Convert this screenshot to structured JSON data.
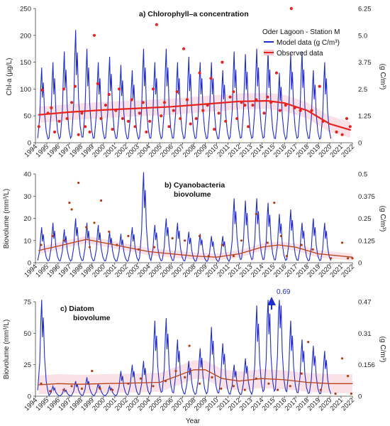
{
  "chart_data": [
    {
      "type": "line",
      "title": "a)  Chlorophyll–a concentration",
      "ylabel": "Chl-a (µg/L)",
      "y2label": "(g C/m³)",
      "xlabel": "",
      "ylim": [
        0,
        250
      ],
      "yticks": [
        "0",
        "50",
        "100",
        "150",
        "200",
        "250"
      ],
      "y2ticks": [
        "0",
        "1.25",
        "2.5",
        "3.75",
        "5.0",
        "6.25"
      ],
      "legend": {
        "title": "Oder Lagoon - Station M",
        "model_label": "Model data (g C/m³)",
        "observed_label": "Observed data",
        "placement": "top-right"
      },
      "model_peaks": [
        140,
        150,
        170,
        210,
        175,
        150,
        160,
        145,
        135,
        175,
        150,
        175,
        150,
        160,
        150,
        150,
        135,
        170,
        165,
        175,
        170,
        130,
        165,
        170,
        135,
        150
      ],
      "trend": [
        [
          1994.3,
          52
        ],
        [
          1997,
          57
        ],
        [
          2000,
          61
        ],
        [
          2003,
          64
        ],
        [
          2006,
          67
        ],
        [
          2009,
          72
        ],
        [
          2012,
          77
        ],
        [
          2014.5,
          78
        ],
        [
          2016,
          74
        ],
        [
          2018,
          60
        ],
        [
          2020,
          35
        ],
        [
          2021.8,
          24
        ]
      ],
      "observed": [
        [
          1994.3,
          30
        ],
        [
          1994.6,
          98
        ],
        [
          1995.1,
          55
        ],
        [
          1995.4,
          65
        ],
        [
          1995.7,
          20
        ],
        [
          1996.1,
          40
        ],
        [
          1996.5,
          100
        ],
        [
          1996.8,
          45
        ],
        [
          1997.2,
          75
        ],
        [
          1997.5,
          105
        ],
        [
          1997.8,
          15
        ],
        [
          1998.1,
          55
        ],
        [
          1998.4,
          30
        ],
        [
          1998.8,
          20
        ],
        [
          1999.2,
          200
        ],
        [
          1999.5,
          110
        ],
        [
          1999.8,
          45
        ],
        [
          2000.2,
          70
        ],
        [
          2000.5,
          90
        ],
        [
          2000.8,
          25
        ],
        [
          2001.1,
          60
        ],
        [
          2001.4,
          100
        ],
        [
          2001.7,
          45
        ],
        [
          2002.2,
          40
        ],
        [
          2002.5,
          80
        ],
        [
          2002.8,
          30
        ],
        [
          2003.2,
          55
        ],
        [
          2003.5,
          75
        ],
        [
          2003.8,
          20
        ],
        [
          2004.1,
          40
        ],
        [
          2004.4,
          100
        ],
        [
          2004.7,
          220
        ],
        [
          2005.1,
          50
        ],
        [
          2005.4,
          75
        ],
        [
          2005.8,
          30
        ],
        [
          2006.2,
          60
        ],
        [
          2006.5,
          95
        ],
        [
          2006.8,
          45
        ],
        [
          2007.1,
          175
        ],
        [
          2007.4,
          80
        ],
        [
          2007.7,
          35
        ],
        [
          2008.2,
          45
        ],
        [
          2008.5,
          130
        ],
        [
          2008.8,
          60
        ],
        [
          2009.2,
          70
        ],
        [
          2009.5,
          120
        ],
        [
          2009.8,
          25
        ],
        [
          2010.2,
          55
        ],
        [
          2010.5,
          150
        ],
        [
          2010.8,
          40
        ],
        [
          2011.2,
          85
        ],
        [
          2011.5,
          95
        ],
        [
          2011.8,
          45
        ],
        [
          2012.2,
          75
        ],
        [
          2012.5,
          70
        ],
        [
          2012.8,
          30
        ],
        [
          2013.2,
          70
        ],
        [
          2013.5,
          80
        ],
        [
          2014.2,
          55
        ],
        [
          2014.5,
          85
        ],
        [
          2014.8,
          75
        ],
        [
          2015.3,
          130
        ],
        [
          2015.6,
          60
        ],
        [
          2016.1,
          70
        ],
        [
          2016.6,
          250
        ],
        [
          2016.9,
          65
        ],
        [
          2017.4,
          60
        ],
        [
          2018.4,
          60
        ],
        [
          2019.1,
          105
        ],
        [
          2019.4,
          40
        ],
        [
          2020.6,
          20
        ],
        [
          2021.1,
          15
        ],
        [
          2021.5,
          45
        ],
        [
          2021.8,
          30
        ]
      ]
    },
    {
      "type": "line",
      "title": "b)  Cyanobacteria biovolume",
      "title_line1": "b)  Cyanobacteria",
      "title_line2": "biovolume",
      "ylabel": "Biovolume (mm³/L)",
      "y2label": "(g C/m³)",
      "xlabel": "",
      "ylim": [
        0,
        40
      ],
      "yticks": [
        "0",
        "10",
        "20",
        "30",
        "40"
      ],
      "y2ticks": [
        "0",
        "0.125",
        "0.25",
        "0.375",
        "0.5"
      ],
      "model_peaks": [
        16,
        18,
        15,
        20,
        18,
        17,
        14,
        13,
        16,
        41,
        17,
        20,
        18,
        14,
        13,
        12,
        12,
        29,
        28,
        29,
        27,
        22,
        24,
        18,
        20,
        18
      ],
      "trend": [
        [
          1994.3,
          5.5
        ],
        [
          1996,
          7.5
        ],
        [
          1998.5,
          10.5
        ],
        [
          2000,
          9
        ],
        [
          2002,
          7
        ],
        [
          2004,
          5
        ],
        [
          2006,
          4
        ],
        [
          2008,
          3
        ],
        [
          2010,
          2.5
        ],
        [
          2012,
          4
        ],
        [
          2014,
          7
        ],
        [
          2015.5,
          8
        ],
        [
          2017,
          7
        ],
        [
          2019,
          4
        ],
        [
          2022,
          2.5
        ]
      ],
      "observed": [
        [
          1994.5,
          8
        ],
        [
          1995.5,
          12
        ],
        [
          1996.5,
          10
        ],
        [
          1997,
          27
        ],
        [
          1997.2,
          24
        ],
        [
          1997.8,
          36
        ],
        [
          1998.5,
          16
        ],
        [
          1998.8,
          7
        ],
        [
          1999.2,
          18
        ],
        [
          1999.8,
          28
        ],
        [
          2000.5,
          14
        ],
        [
          2001.2,
          8
        ],
        [
          2002.2,
          12
        ],
        [
          2003.1,
          6
        ],
        [
          2004.5,
          7
        ],
        [
          2006.1,
          11
        ],
        [
          2007.2,
          10
        ],
        [
          2008.5,
          12
        ],
        [
          2009.3,
          3
        ],
        [
          2010.5,
          8
        ],
        [
          2011.5,
          3
        ],
        [
          2012.2,
          10
        ],
        [
          2013.5,
          22
        ],
        [
          2014.5,
          9
        ],
        [
          2015.1,
          27
        ],
        [
          2015.7,
          12
        ],
        [
          2016.2,
          3
        ],
        [
          2017.5,
          8
        ],
        [
          2018.5,
          6
        ],
        [
          2020.1,
          2
        ],
        [
          2021.1,
          9
        ],
        [
          2021.6,
          2
        ],
        [
          2022,
          2
        ]
      ]
    },
    {
      "type": "line",
      "title": "c)  Diatom biovolume",
      "title_line1": "c)  Diatom",
      "title_line2": "biovolume",
      "ylabel": "Biovolume (mm³/L)",
      "y2label": "(g C/m³)",
      "xlabel": "Year",
      "ylim": [
        0,
        75
      ],
      "yticks": [
        "0",
        "25",
        "50",
        "75"
      ],
      "y2ticks": [
        "0",
        "0.156",
        "0.31",
        "0.47"
      ],
      "xticks": [
        "1994",
        "1995",
        "1996",
        "1997",
        "1998",
        "1999",
        "2000",
        "2001",
        "2002",
        "2003",
        "2004",
        "2005",
        "2006",
        "2007",
        "2008",
        "2009",
        "2010",
        "2011",
        "2012",
        "2013",
        "2014",
        "2015",
        "2016",
        "2017",
        "2018",
        "2019",
        "2020",
        "2021",
        "2022"
      ],
      "annotation": "0.69",
      "model_peaks": [
        78,
        8,
        6,
        12,
        15,
        10,
        8,
        20,
        25,
        28,
        60,
        62,
        45,
        28,
        38,
        55,
        42,
        25,
        30,
        72,
        82,
        90,
        60,
        45,
        40,
        36
      ],
      "trend": [
        [
          1994.3,
          9
        ],
        [
          1996,
          10
        ],
        [
          1998,
          9.5
        ],
        [
          2000,
          10
        ],
        [
          2003,
          10.5
        ],
        [
          2005,
          11
        ],
        [
          2006.5,
          16
        ],
        [
          2008,
          21
        ],
        [
          2009,
          21
        ],
        [
          2010.5,
          14
        ],
        [
          2012,
          12
        ],
        [
          2014,
          14
        ],
        [
          2016,
          13
        ],
        [
          2018,
          11
        ],
        [
          2020,
          10
        ],
        [
          2022,
          10
        ]
      ],
      "observed": [
        [
          1994.5,
          10
        ],
        [
          1995.3,
          4
        ],
        [
          1996.5,
          5
        ],
        [
          1997.2,
          8
        ],
        [
          1998.1,
          6
        ],
        [
          1999,
          20
        ],
        [
          1999.7,
          6
        ],
        [
          2000.8,
          5
        ],
        [
          2002.2,
          10
        ],
        [
          2003.3,
          14
        ],
        [
          2004.4,
          8
        ],
        [
          2005.5,
          12
        ],
        [
          2006.4,
          20
        ],
        [
          2007.2,
          15
        ],
        [
          2007.6,
          40
        ],
        [
          2008.5,
          10
        ],
        [
          2009.6,
          15
        ],
        [
          2010.4,
          6
        ],
        [
          2011.5,
          8
        ],
        [
          2012.5,
          5
        ],
        [
          2013.5,
          14
        ],
        [
          2014.6,
          10
        ],
        [
          2015.4,
          5
        ],
        [
          2016.5,
          8
        ],
        [
          2017.5,
          18
        ],
        [
          2018.1,
          43
        ],
        [
          2019.2,
          5
        ],
        [
          2020.5,
          2
        ],
        [
          2021.1,
          30
        ],
        [
          2021.6,
          16
        ],
        [
          2021.9,
          2
        ]
      ]
    }
  ],
  "colors": {
    "model": "#1f2ccf",
    "observed": "#e8231f",
    "trend_a": "#e8231f",
    "trend_bc": "#b8431c",
    "band": "#f4c9cf"
  }
}
